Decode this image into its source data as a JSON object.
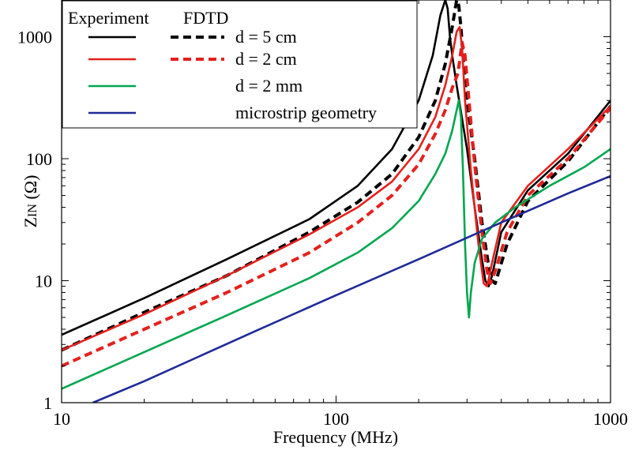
{
  "chart_data": {
    "type": "line",
    "xlabel": "Frequency (MHz)",
    "ylabel": "ZIN (Ω)",
    "ylabel_main": "Z",
    "ylabel_sub": "IN",
    "ylabel_unit": " (Ω)",
    "xscale": "log",
    "yscale": "log",
    "xlim": [
      10,
      1000
    ],
    "ylim": [
      1,
      2000
    ],
    "xticks": [
      10,
      100,
      1000
    ],
    "xtick_labels": [
      "10",
      "100",
      "1000"
    ],
    "yticks": [
      1,
      10,
      100,
      1000
    ],
    "ytick_labels": [
      "1",
      "10",
      "100",
      "1000"
    ],
    "grid": false,
    "legend": {
      "placement": "top-left",
      "header_left": "Experiment",
      "header_right": "FDTD",
      "rows": [
        "d = 5 cm",
        "d = 2 cm",
        "d = 2 mm",
        "microstrip geometry"
      ]
    },
    "series": [
      {
        "name": "d = 5 cm",
        "method": "Experiment",
        "color": "#000000",
        "dash": "solid",
        "x": [
          10,
          20,
          40,
          80,
          120,
          160,
          200,
          225,
          240,
          250,
          255,
          260,
          265,
          275,
          300,
          320,
          340,
          350,
          360,
          370,
          400,
          500,
          700,
          1000
        ],
        "y": [
          3.6,
          7.2,
          15,
          32,
          60,
          120,
          300,
          700,
          1500,
          2000,
          1700,
          1000,
          700,
          400,
          120,
          40,
          15,
          10,
          9,
          11,
          25,
          55,
          110,
          300
        ]
      },
      {
        "name": "d = 5 cm",
        "method": "FDTD",
        "color": "#000000",
        "dash": "dashed",
        "x": [
          10,
          20,
          40,
          80,
          120,
          160,
          200,
          230,
          250,
          265,
          275,
          280,
          285,
          290,
          300,
          320,
          340,
          360,
          370,
          380,
          420,
          500,
          700,
          1000
        ],
        "y": [
          2.7,
          5.5,
          11,
          25,
          44,
          75,
          150,
          300,
          600,
          1200,
          2000,
          1800,
          1200,
          700,
          300,
          100,
          30,
          13,
          10,
          9.5,
          20,
          45,
          95,
          270
        ]
      },
      {
        "name": "d = 2 cm",
        "method": "Experiment",
        "color": "#e3211d",
        "dash": "solid",
        "x": [
          10,
          20,
          40,
          80,
          120,
          160,
          200,
          230,
          250,
          265,
          275,
          282,
          288,
          295,
          310,
          330,
          345,
          355,
          370,
          400,
          500,
          700,
          1000
        ],
        "y": [
          2.7,
          5.3,
          11,
          24,
          40,
          65,
          120,
          220,
          400,
          700,
          1100,
          1200,
          800,
          300,
          80,
          20,
          9.5,
          9,
          14,
          30,
          60,
          120,
          270
        ]
      },
      {
        "name": "d = 2 cm",
        "method": "FDTD",
        "color": "#e3211d",
        "dash": "dashed",
        "x": [
          10,
          20,
          40,
          80,
          120,
          160,
          200,
          230,
          250,
          265,
          278,
          288,
          295,
          305,
          320,
          340,
          355,
          365,
          380,
          420,
          500,
          700,
          1000
        ],
        "y": [
          2.0,
          4.0,
          8.0,
          17,
          30,
          50,
          90,
          160,
          250,
          380,
          500,
          900,
          700,
          300,
          90,
          25,
          12,
          9.5,
          12,
          25,
          50,
          100,
          260
        ]
      },
      {
        "name": "d = 2 mm",
        "method": "Experiment",
        "color": "#00a650",
        "dash": "solid",
        "x": [
          10,
          20,
          40,
          80,
          120,
          160,
          200,
          230,
          250,
          265,
          275,
          280,
          285,
          290,
          295,
          300,
          305,
          310,
          320,
          340,
          380,
          450,
          600,
          800,
          1000
        ],
        "y": [
          1.3,
          2.6,
          5.2,
          10.5,
          17,
          27,
          45,
          75,
          110,
          170,
          250,
          300,
          220,
          80,
          20,
          8,
          5,
          8,
          14,
          22,
          30,
          40,
          60,
          85,
          120
        ]
      },
      {
        "name": "microstrip geometry",
        "method": "Experiment",
        "color": "#1f2a96",
        "dash": "solid",
        "x": [
          13,
          20,
          50,
          100,
          200,
          400,
          700,
          1000
        ],
        "y": [
          1.0,
          1.5,
          3.8,
          7.6,
          15,
          30,
          52,
          72
        ]
      }
    ]
  }
}
